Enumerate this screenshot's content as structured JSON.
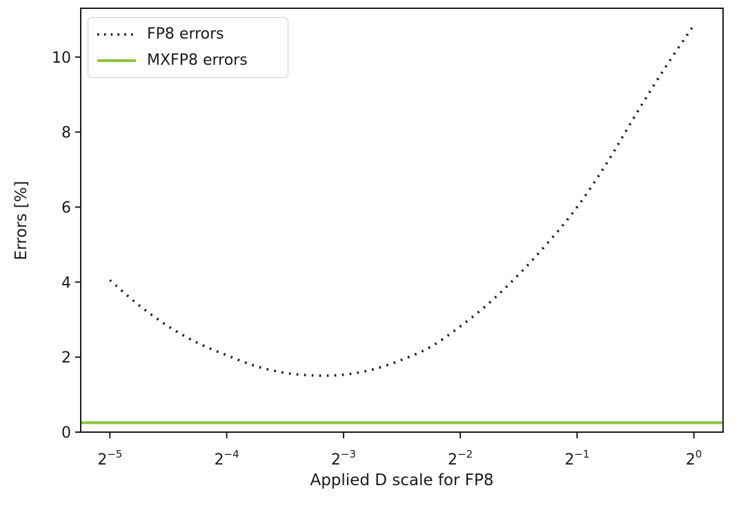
{
  "figure": {
    "background": "#ffffff",
    "ink_color": "#1a1a1a"
  },
  "legend": {
    "position": "upper left",
    "items": [
      {
        "label": "FP8 errors",
        "style": "dotted",
        "color": "#1a1a1a"
      },
      {
        "label": "MXFP8 errors",
        "style": "solid",
        "color": "#8cc43c"
      }
    ]
  },
  "chart_data": {
    "type": "line",
    "title": "",
    "xlabel": "Applied D scale for FP8",
    "ylabel": "Errors [%]",
    "x_scale": "log2",
    "x_tick_label_base": "2",
    "x_tick_exponents": [
      -5,
      -4,
      -3,
      -2,
      -1,
      0
    ],
    "y_ticks": [
      0,
      2,
      4,
      6,
      8,
      10
    ],
    "xlim_exponents": [
      -5.25,
      0.25
    ],
    "ylim": [
      0,
      11.3
    ],
    "grid": false,
    "legend_position": "upper left",
    "series": [
      {
        "name": "FP8 errors",
        "color": "#1a1a1a",
        "linestyle": "dotted",
        "x_exponents": [
          -5,
          -4.75,
          -4.5,
          -4.25,
          -4,
          -3.75,
          -3.5,
          -3.25,
          -3,
          -2.75,
          -2.5,
          -2.25,
          -2,
          -1.75,
          -1.5,
          -1.25,
          -1,
          -0.75,
          -0.5,
          -0.25,
          0
        ],
        "values": [
          4.05,
          3.38,
          2.82,
          2.38,
          2.05,
          1.76,
          1.58,
          1.51,
          1.53,
          1.67,
          1.93,
          2.28,
          2.82,
          3.45,
          4.2,
          5.05,
          6.0,
          7.15,
          8.45,
          9.7,
          10.85
        ]
      },
      {
        "name": "MXFP8 errors",
        "color": "#8cc43c",
        "linestyle": "solid",
        "x_exponents": [
          -5.25,
          0.25
        ],
        "values": [
          0.25,
          0.25
        ]
      }
    ]
  }
}
